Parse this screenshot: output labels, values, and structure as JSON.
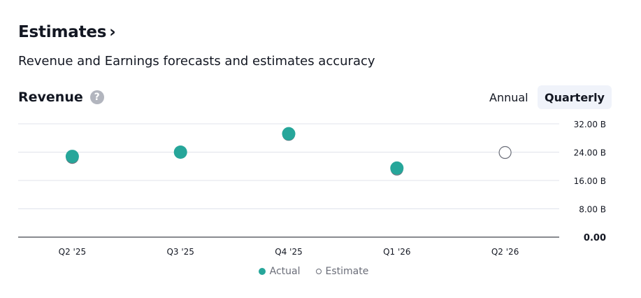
{
  "header": {
    "title": "Estimates",
    "subtitle": "Revenue and Earnings forecasts and estimates accuracy"
  },
  "section": {
    "title": "Revenue",
    "help_icon": "question-circle-icon",
    "help_glyph": "?"
  },
  "period_toggle": {
    "annual_label": "Annual",
    "quarterly_label": "Quarterly",
    "selected": "Quarterly"
  },
  "legend": {
    "actual_label": "Actual",
    "estimate_label": "Estimate"
  },
  "colors": {
    "actual": "#26a69a",
    "estimate_stroke": "#6a6d78",
    "grid": "#e0e3eb",
    "axis": "#131722"
  },
  "chart_data": {
    "type": "scatter",
    "categories": [
      "Q2 '25",
      "Q3 '25",
      "Q4 '25",
      "Q1 '26",
      "Q2 '26"
    ],
    "y_ticks": [
      "32.00 B",
      "24.00 B",
      "16.00 B",
      "8.00 B",
      "0.00"
    ],
    "y_tick_values": [
      32,
      24,
      16,
      8,
      0
    ],
    "ylim": [
      0,
      32
    ],
    "y_unit": "B",
    "series": [
      {
        "name": "Actual",
        "values": [
          22.8,
          24.0,
          29.2,
          19.5,
          null
        ]
      },
      {
        "name": "Estimate",
        "values": [
          22.5,
          24.0,
          29.0,
          19.2,
          23.9
        ]
      }
    ],
    "grid": true
  }
}
